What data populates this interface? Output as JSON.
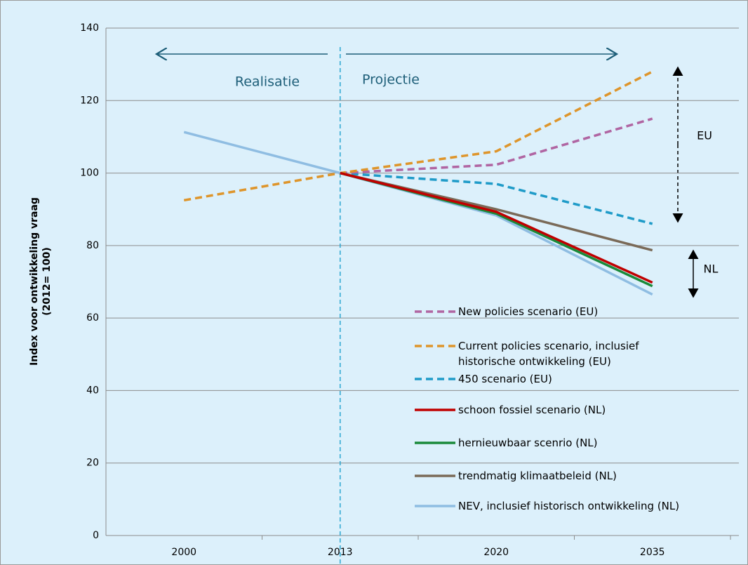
{
  "chart_data": {
    "type": "line",
    "ylabel": [
      "Index voor ontwikkeling vraag",
      "(2012= 100)"
    ],
    "categories": [
      "2000",
      "2013",
      "2020",
      "2035"
    ],
    "ylim": [
      0,
      140
    ],
    "yticks": [
      0,
      20,
      40,
      60,
      80,
      100,
      120,
      140
    ],
    "grid": true,
    "annotations": [
      "Realisatie",
      "Projectie",
      "EU",
      "NL"
    ],
    "series": [
      {
        "name": "New policies scenario (EU)",
        "color": "#b065a2",
        "dashed": true,
        "values": [
          null,
          100,
          102.3,
          115
        ]
      },
      {
        "name": "Current policies scenario, inclusief historische ontwikkeling (EU)",
        "color": "#de952b",
        "dashed": true,
        "values": [
          92.5,
          100,
          106,
          128
        ]
      },
      {
        "name": "450 scenario (EU)",
        "color": "#1f9bc8",
        "dashed": true,
        "values": [
          null,
          100,
          97,
          86
        ]
      },
      {
        "name": "schoon fossiel scenario (NL)",
        "color": "#c00000",
        "dashed": false,
        "values": [
          null,
          100,
          89.3,
          69.8
        ]
      },
      {
        "name": "hernieuwbaar scenrio (NL)",
        "color": "#1a8a3a",
        "dashed": false,
        "values": [
          null,
          100,
          88.8,
          68.8
        ]
      },
      {
        "name": "trendmatig klimaatbeleid (NL)",
        "color": "#7a6a58",
        "dashed": false,
        "values": [
          null,
          100,
          90,
          78.7
        ]
      },
      {
        "name": "NEV, inclusief historisch ontwikkeling (NL)",
        "color": "#8fbde2",
        "dashed": false,
        "values": [
          111.3,
          100,
          88.3,
          66.5
        ]
      }
    ]
  }
}
